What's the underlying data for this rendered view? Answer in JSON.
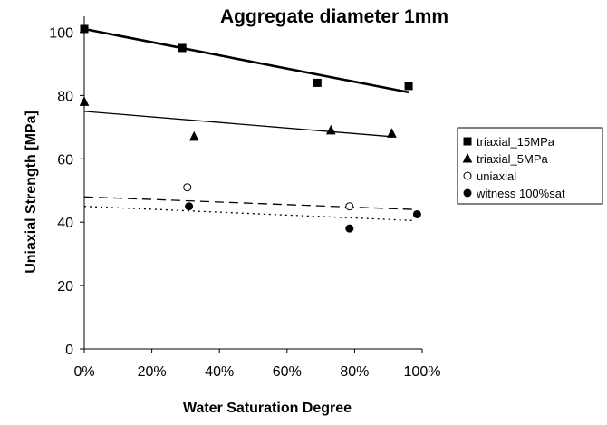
{
  "chart_data": {
    "type": "scatter",
    "title": "Aggregate diameter 1mm",
    "xlabel": "Water Saturation Degree",
    "ylabel": "Uniaxial Strength [MPa]",
    "xlim": [
      0,
      1
    ],
    "ylim": [
      0,
      105
    ],
    "x_ticks": [
      {
        "value": 0.0,
        "label": "0%"
      },
      {
        "value": 0.2,
        "label": "20%"
      },
      {
        "value": 0.4,
        "label": "40%"
      },
      {
        "value": 0.6,
        "label": "60%"
      },
      {
        "value": 0.8,
        "label": "80%"
      },
      {
        "value": 1.0,
        "label": "100%"
      }
    ],
    "y_ticks": [
      {
        "value": 0,
        "label": "0"
      },
      {
        "value": 20,
        "label": "20"
      },
      {
        "value": 40,
        "label": "40"
      },
      {
        "value": 60,
        "label": "60"
      },
      {
        "value": 80,
        "label": "80"
      },
      {
        "value": 100,
        "label": "100"
      }
    ],
    "grid": false,
    "legend_position": "right",
    "series": [
      {
        "name": "triaxial_15MPa",
        "marker": "square",
        "filled": true,
        "color": "#000000",
        "points": [
          [
            0.0,
            101
          ],
          [
            0.29,
            95
          ],
          [
            0.69,
            84
          ],
          [
            0.96,
            83
          ]
        ],
        "trendline": {
          "style": "solid",
          "width": "thick",
          "x": [
            0.0,
            0.96
          ],
          "y": [
            101,
            81
          ]
        }
      },
      {
        "name": "triaxial_5MPa",
        "marker": "triangle",
        "filled": true,
        "color": "#000000",
        "points": [
          [
            0.0,
            78
          ],
          [
            0.325,
            67
          ],
          [
            0.73,
            69
          ],
          [
            0.91,
            68
          ]
        ],
        "trendline": {
          "style": "solid",
          "width": "thin",
          "x": [
            0.0,
            0.91
          ],
          "y": [
            75,
            67
          ]
        }
      },
      {
        "name": "uniaxial",
        "marker": "circle",
        "filled": false,
        "color": "#000000",
        "points": [
          [
            0.305,
            51
          ],
          [
            0.785,
            45
          ]
        ],
        "trendline": {
          "style": "dashed",
          "width": "thin",
          "x": [
            0.0,
            0.98
          ],
          "y": [
            48,
            44
          ]
        }
      },
      {
        "name": "witness 100%sat",
        "marker": "circle",
        "filled": true,
        "color": "#000000",
        "points": [
          [
            0.31,
            45
          ],
          [
            0.785,
            38
          ],
          [
            0.985,
            42.5
          ]
        ],
        "trendline": {
          "style": "dotted",
          "width": "thin",
          "x": [
            0.0,
            0.98
          ],
          "y": [
            45,
            40.5
          ]
        }
      }
    ]
  }
}
